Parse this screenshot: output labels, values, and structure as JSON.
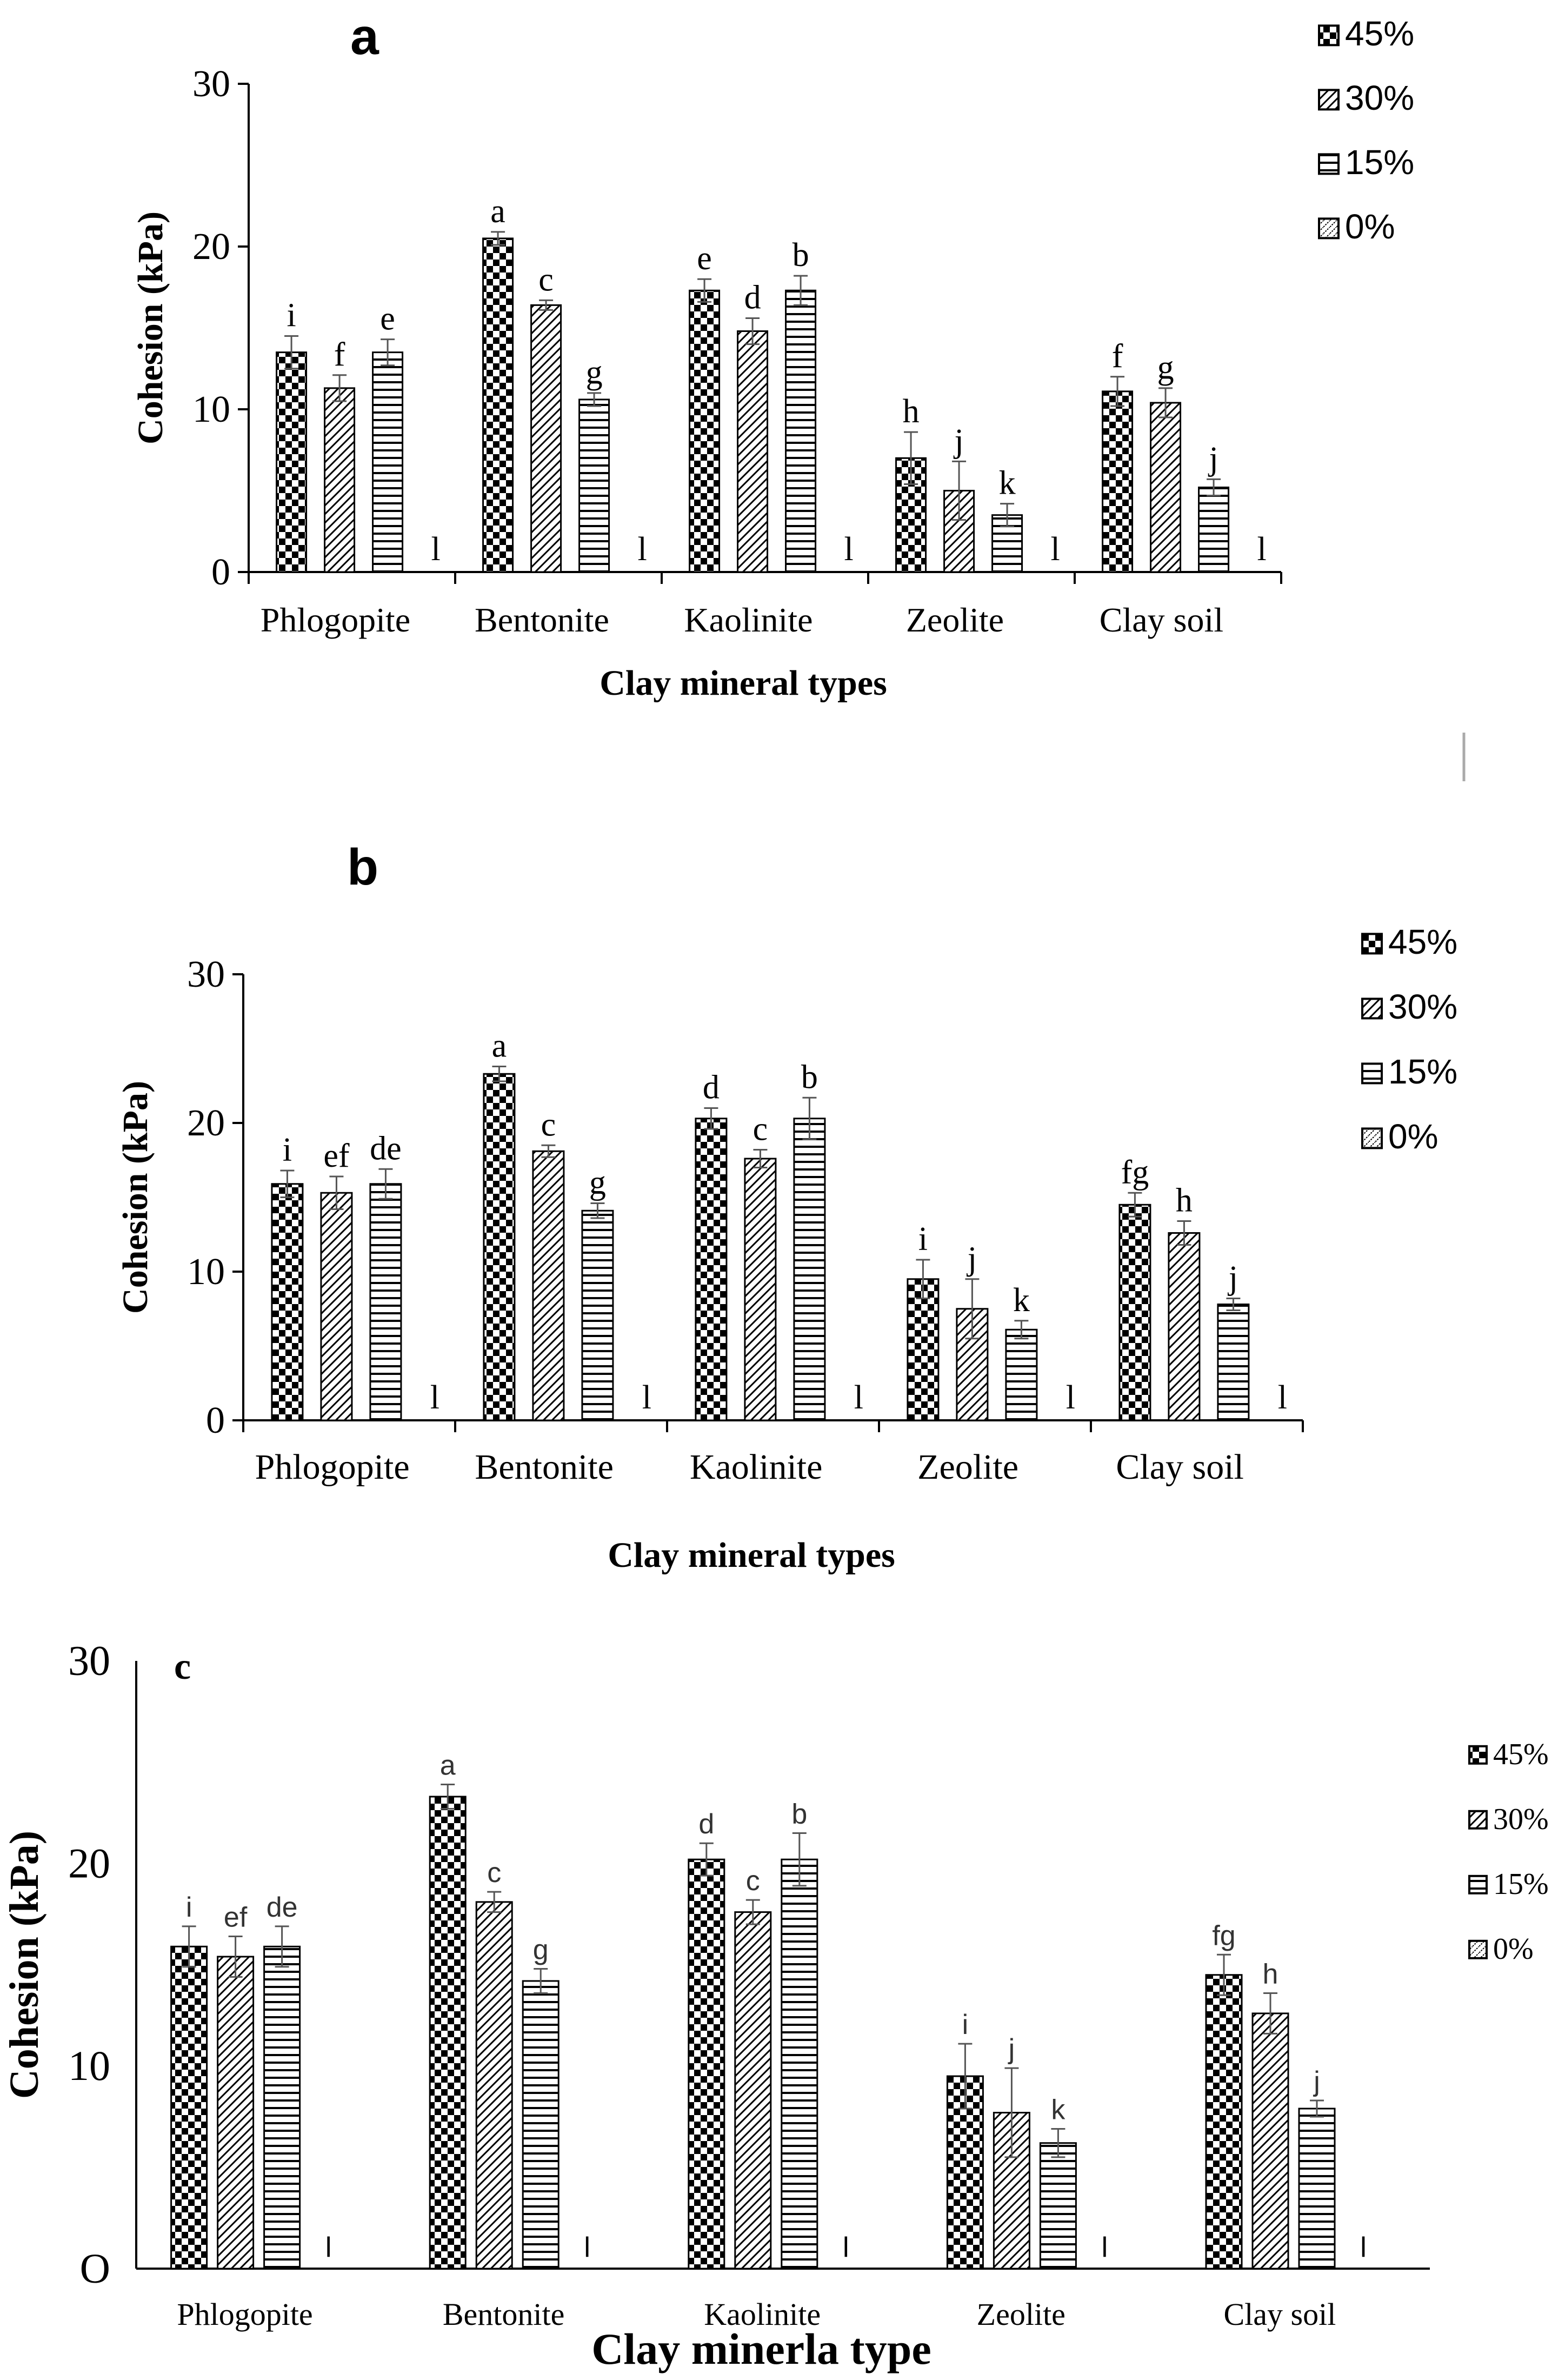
{
  "figure": {
    "colors": {
      "ink": "#000000",
      "error_bar": "#555555",
      "background": "#ffffff"
    },
    "patterns": [
      "checker",
      "diagonal",
      "horizontal",
      "dotted-diagonal"
    ]
  },
  "chart_data": [
    {
      "panel_label": "a",
      "type": "bar",
      "title": "",
      "xlabel": "Clay mineral types",
      "ylabel": "Cohesion (kPa)",
      "ylim": [
        0,
        30
      ],
      "yticks": [
        "0",
        "10",
        "20",
        "30"
      ],
      "categories": [
        "Phlogopite",
        "Bentonite",
        "Kaolinite",
        "Zeolite",
        "Clay soil"
      ],
      "legend_position": "top-right",
      "series": [
        {
          "name": "45%",
          "values": [
            13.5,
            20.5,
            17.3,
            7.0,
            11.1
          ],
          "errors": [
            1.0,
            0.4,
            0.7,
            1.6,
            0.9
          ],
          "letters": [
            "i",
            "a",
            "e",
            "h",
            "f"
          ]
        },
        {
          "name": "30%",
          "values": [
            11.3,
            16.4,
            14.8,
            5.0,
            10.4
          ],
          "errors": [
            0.8,
            0.3,
            0.8,
            1.8,
            0.9
          ],
          "letters": [
            "f",
            "c",
            "d",
            "j",
            "g"
          ]
        },
        {
          "name": "15%",
          "values": [
            13.5,
            10.6,
            17.3,
            3.5,
            5.2
          ],
          "errors": [
            0.8,
            0.4,
            0.9,
            0.7,
            0.5
          ],
          "letters": [
            "e",
            "g",
            "b",
            "k",
            "j"
          ]
        },
        {
          "name": "0%",
          "values": [
            0,
            0,
            0,
            0,
            0
          ],
          "errors": [
            0,
            0,
            0,
            0,
            0
          ],
          "letters": [
            "l",
            "l",
            "l",
            "l",
            "l"
          ]
        }
      ]
    },
    {
      "panel_label": "b",
      "type": "bar",
      "title": "",
      "xlabel": "Clay mineral types",
      "ylabel": "Cohesion (kPa)",
      "ylim": [
        0,
        30
      ],
      "yticks": [
        "0",
        "10",
        "20",
        "30"
      ],
      "categories": [
        "Phlogopite",
        "Bentonite",
        "Kaolinite",
        "Zeolite",
        "Clay soil"
      ],
      "legend_position": "top-right",
      "series": [
        {
          "name": "45%",
          "values": [
            15.9,
            23.3,
            20.3,
            9.5,
            14.5
          ],
          "errors": [
            0.9,
            0.5,
            0.7,
            1.3,
            0.8
          ],
          "letters": [
            "i",
            "a",
            "d",
            "i",
            "fg"
          ]
        },
        {
          "name": "30%",
          "values": [
            15.3,
            18.1,
            17.6,
            7.5,
            12.6
          ],
          "errors": [
            1.1,
            0.4,
            0.6,
            2.0,
            0.8
          ],
          "letters": [
            "ef",
            "c",
            "c",
            "j",
            "h"
          ]
        },
        {
          "name": "15%",
          "values": [
            15.9,
            14.1,
            20.3,
            6.1,
            7.8
          ],
          "errors": [
            1.0,
            0.5,
            1.4,
            0.6,
            0.4
          ],
          "letters": [
            "de",
            "g",
            "b",
            "k",
            "j"
          ]
        },
        {
          "name": "0%",
          "values": [
            0,
            0,
            0,
            0,
            0
          ],
          "errors": [
            0,
            0,
            0,
            0,
            0
          ],
          "letters": [
            "l",
            "l",
            "l",
            "l",
            "l"
          ]
        }
      ]
    },
    {
      "panel_label": "c",
      "type": "bar",
      "title": "",
      "xlabel": "Clay  minerla type",
      "ylabel": "Cohesion (kPa)",
      "ylim": [
        0,
        30
      ],
      "yticks": [
        "O",
        "10",
        "20",
        "30"
      ],
      "categories": [
        "Phlogopite",
        "Bentonite",
        "Kaolinite",
        "Zeolite",
        "Clay soil"
      ],
      "legend_position": "right",
      "series": [
        {
          "name": "45%",
          "values": [
            15.9,
            23.3,
            20.2,
            9.5,
            14.5
          ],
          "errors": [
            1.0,
            0.6,
            0.8,
            1.6,
            1.0
          ],
          "letters": [
            "i",
            "a",
            "d",
            "i",
            "fg"
          ]
        },
        {
          "name": "30%",
          "values": [
            15.4,
            18.1,
            17.6,
            7.7,
            12.6
          ],
          "errors": [
            1.0,
            0.5,
            0.6,
            2.2,
            1.0
          ],
          "letters": [
            "ef",
            "c",
            "c",
            "j",
            "h"
          ]
        },
        {
          "name": "15%",
          "values": [
            15.9,
            14.2,
            20.2,
            6.2,
            7.9
          ],
          "errors": [
            1.0,
            0.6,
            1.3,
            0.7,
            0.4
          ],
          "letters": [
            "de",
            "g",
            "b",
            "k",
            "j"
          ]
        },
        {
          "name": "0%",
          "values": [
            0,
            0,
            0,
            0,
            0
          ],
          "errors": [
            0,
            0,
            0,
            0,
            0
          ],
          "letters": [
            "l",
            "l",
            "l",
            "l",
            "l"
          ]
        }
      ]
    }
  ]
}
